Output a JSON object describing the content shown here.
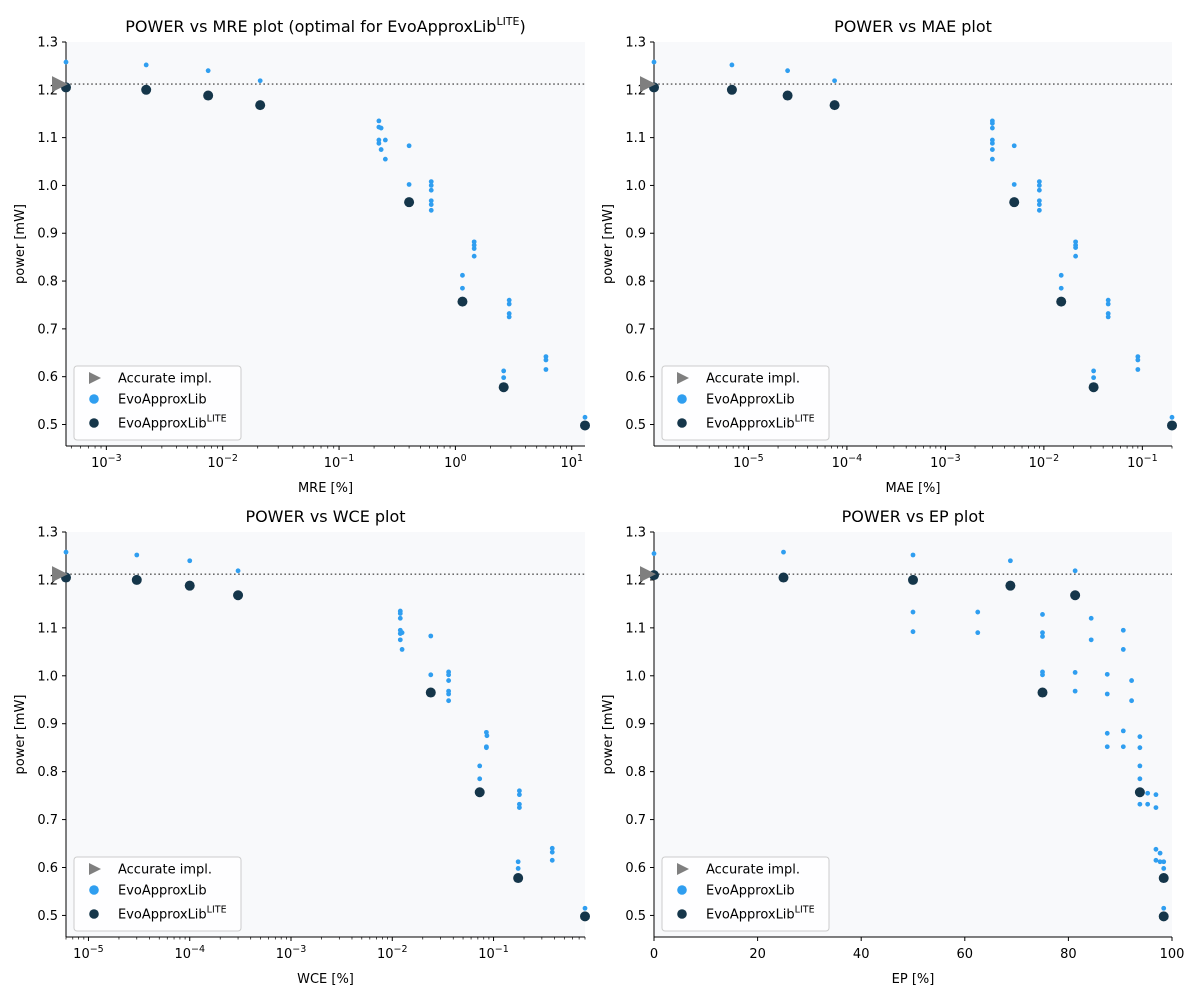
{
  "chart_data": [
    {
      "type": "scatter",
      "title": "POWER vs MRE plot (optimal for EvoApproxLib",
      "title_sup": "LITE",
      "title_suffix": ")",
      "xlabel": "MRE [%]",
      "ylabel": "power [mW]",
      "xscale": "log",
      "xlim": [
        0.00045,
        13
      ],
      "ylim": [
        0.455,
        1.3
      ],
      "xticks": [
        {
          "v": 0.001,
          "b": "10",
          "e": "−3"
        },
        {
          "v": 0.01,
          "b": "10",
          "e": "−2"
        },
        {
          "v": 0.1,
          "b": "10",
          "e": "−1"
        },
        {
          "v": 1,
          "b": "10",
          "e": "0"
        },
        {
          "v": 10,
          "b": "10",
          "e": "1"
        }
      ],
      "yticks": [
        "0.5",
        "0.6",
        "0.7",
        "0.8",
        "0.9",
        "1.0",
        "1.1",
        "1.2",
        "1.3"
      ],
      "accurate": {
        "x": 0.00045,
        "y": 1.212
      },
      "lib": [
        [
          0.00045,
          1.258
        ],
        [
          0.0022,
          1.252
        ],
        [
          0.0075,
          1.24
        ],
        [
          0.021,
          1.219
        ],
        [
          0.22,
          1.135
        ],
        [
          0.22,
          1.122
        ],
        [
          0.23,
          1.12
        ],
        [
          0.22,
          1.095
        ],
        [
          0.22,
          1.088
        ],
        [
          0.25,
          1.095
        ],
        [
          0.23,
          1.075
        ],
        [
          0.25,
          1.055
        ],
        [
          0.4,
          1.083
        ],
        [
          0.4,
          1.002
        ],
        [
          0.62,
          1.008
        ],
        [
          0.62,
          1.0
        ],
        [
          0.62,
          0.99
        ],
        [
          0.62,
          0.968
        ],
        [
          0.62,
          0.96
        ],
        [
          0.62,
          0.948
        ],
        [
          1.45,
          0.882
        ],
        [
          1.45,
          0.875
        ],
        [
          1.45,
          0.868
        ],
        [
          1.45,
          0.852
        ],
        [
          1.15,
          0.812
        ],
        [
          1.15,
          0.785
        ],
        [
          2.9,
          0.76
        ],
        [
          2.9,
          0.752
        ],
        [
          2.9,
          0.732
        ],
        [
          2.9,
          0.725
        ],
        [
          2.6,
          0.612
        ],
        [
          2.6,
          0.598
        ],
        [
          6.0,
          0.642
        ],
        [
          6.0,
          0.635
        ],
        [
          6.0,
          0.615
        ],
        [
          13,
          0.515
        ]
      ],
      "lite": [
        [
          0.00045,
          1.205
        ],
        [
          0.0022,
          1.2
        ],
        [
          0.0075,
          1.188
        ],
        [
          0.021,
          1.168
        ],
        [
          0.4,
          0.965
        ],
        [
          1.15,
          0.757
        ],
        [
          2.6,
          0.578
        ],
        [
          13,
          0.498
        ]
      ],
      "legend": [
        "Accurate impl.",
        "EvoApproxLib",
        "EvoApproxLib",
        "LITE"
      ]
    },
    {
      "type": "scatter",
      "title": "POWER vs MAE plot",
      "title_sup": "",
      "title_suffix": "",
      "xlabel": "MAE [%]",
      "ylabel": "power [mW]",
      "xscale": "log",
      "xlim": [
        1.1e-06,
        0.2
      ],
      "ylim": [
        0.455,
        1.3
      ],
      "xticks": [
        {
          "v": 1e-05,
          "b": "10",
          "e": "−5"
        },
        {
          "v": 0.0001,
          "b": "10",
          "e": "−4"
        },
        {
          "v": 0.001,
          "b": "10",
          "e": "−3"
        },
        {
          "v": 0.01,
          "b": "10",
          "e": "−2"
        },
        {
          "v": 0.1,
          "b": "10",
          "e": "−1"
        }
      ],
      "yticks": [
        "0.5",
        "0.6",
        "0.7",
        "0.8",
        "0.9",
        "1.0",
        "1.1",
        "1.2",
        "1.3"
      ],
      "accurate": {
        "x": 1.1e-06,
        "y": 1.212
      },
      "lib": [
        [
          1.1e-06,
          1.258
        ],
        [
          6.8e-06,
          1.252
        ],
        [
          2.5e-05,
          1.24
        ],
        [
          7.5e-05,
          1.219
        ],
        [
          0.003,
          1.135
        ],
        [
          0.003,
          1.13
        ],
        [
          0.003,
          1.12
        ],
        [
          0.003,
          1.095
        ],
        [
          0.003,
          1.088
        ],
        [
          0.003,
          1.075
        ],
        [
          0.003,
          1.055
        ],
        [
          0.005,
          1.083
        ],
        [
          0.005,
          1.002
        ],
        [
          0.009,
          1.008
        ],
        [
          0.009,
          1.0
        ],
        [
          0.009,
          0.99
        ],
        [
          0.009,
          0.968
        ],
        [
          0.009,
          0.96
        ],
        [
          0.009,
          0.948
        ],
        [
          0.021,
          0.882
        ],
        [
          0.021,
          0.875
        ],
        [
          0.021,
          0.87
        ],
        [
          0.021,
          0.852
        ],
        [
          0.015,
          0.812
        ],
        [
          0.015,
          0.785
        ],
        [
          0.045,
          0.76
        ],
        [
          0.045,
          0.752
        ],
        [
          0.045,
          0.732
        ],
        [
          0.045,
          0.725
        ],
        [
          0.032,
          0.612
        ],
        [
          0.032,
          0.598
        ],
        [
          0.09,
          0.642
        ],
        [
          0.09,
          0.635
        ],
        [
          0.09,
          0.615
        ],
        [
          0.2,
          0.515
        ]
      ],
      "lite": [
        [
          1.1e-06,
          1.205
        ],
        [
          6.8e-06,
          1.2
        ],
        [
          2.5e-05,
          1.188
        ],
        [
          7.5e-05,
          1.168
        ],
        [
          0.005,
          0.965
        ],
        [
          0.015,
          0.757
        ],
        [
          0.032,
          0.578
        ],
        [
          0.2,
          0.498
        ]
      ],
      "legend": [
        "Accurate impl.",
        "EvoApproxLib",
        "EvoApproxLib",
        "LITE"
      ]
    },
    {
      "type": "scatter",
      "title": "POWER vs WCE plot",
      "title_sup": "",
      "title_suffix": "",
      "xlabel": "WCE [%]",
      "ylabel": "power [mW]",
      "xscale": "log",
      "xlim": [
        6e-06,
        0.8
      ],
      "ylim": [
        0.455,
        1.3
      ],
      "xticks": [
        {
          "v": 1e-05,
          "b": "10",
          "e": "−5"
        },
        {
          "v": 0.0001,
          "b": "10",
          "e": "−4"
        },
        {
          "v": 0.001,
          "b": "10",
          "e": "−3"
        },
        {
          "v": 0.01,
          "b": "10",
          "e": "−2"
        },
        {
          "v": 0.1,
          "b": "10",
          "e": "−1"
        }
      ],
      "yticks": [
        "0.5",
        "0.6",
        "0.7",
        "0.8",
        "0.9",
        "1.0",
        "1.1",
        "1.2",
        "1.3"
      ],
      "accurate": {
        "x": 6e-06,
        "y": 1.212
      },
      "lib": [
        [
          6e-06,
          1.258
        ],
        [
          3e-05,
          1.252
        ],
        [
          0.0001,
          1.24
        ],
        [
          0.0003,
          1.219
        ],
        [
          0.012,
          1.135
        ],
        [
          0.012,
          1.13
        ],
        [
          0.012,
          1.12
        ],
        [
          0.012,
          1.095
        ],
        [
          0.0125,
          1.09
        ],
        [
          0.012,
          1.088
        ],
        [
          0.012,
          1.075
        ],
        [
          0.0125,
          1.055
        ],
        [
          0.024,
          1.083
        ],
        [
          0.024,
          1.002
        ],
        [
          0.036,
          1.008
        ],
        [
          0.036,
          1.002
        ],
        [
          0.036,
          0.99
        ],
        [
          0.036,
          0.968
        ],
        [
          0.036,
          0.962
        ],
        [
          0.036,
          0.948
        ],
        [
          0.085,
          0.882
        ],
        [
          0.086,
          0.875
        ],
        [
          0.085,
          0.852
        ],
        [
          0.085,
          0.85
        ],
        [
          0.073,
          0.812
        ],
        [
          0.073,
          0.785
        ],
        [
          0.18,
          0.76
        ],
        [
          0.18,
          0.752
        ],
        [
          0.18,
          0.732
        ],
        [
          0.18,
          0.725
        ],
        [
          0.175,
          0.612
        ],
        [
          0.175,
          0.598
        ],
        [
          0.38,
          0.64
        ],
        [
          0.38,
          0.632
        ],
        [
          0.38,
          0.615
        ],
        [
          0.8,
          0.515
        ]
      ],
      "lite": [
        [
          6e-06,
          1.205
        ],
        [
          3e-05,
          1.2
        ],
        [
          0.0001,
          1.188
        ],
        [
          0.0003,
          1.168
        ],
        [
          0.024,
          0.965
        ],
        [
          0.073,
          0.757
        ],
        [
          0.175,
          0.578
        ],
        [
          0.8,
          0.498
        ]
      ],
      "legend": [
        "Accurate impl.",
        "EvoApproxLib",
        "EvoApproxLib",
        "LITE"
      ]
    },
    {
      "type": "scatter",
      "title": "POWER vs EP plot",
      "title_sup": "",
      "title_suffix": "",
      "xlabel": "EP [%]",
      "ylabel": "power [mW]",
      "xscale": "linear",
      "xlim": [
        0,
        100
      ],
      "ylim": [
        0.455,
        1.3
      ],
      "xticks": [
        {
          "v": 0,
          "t": "0"
        },
        {
          "v": 20,
          "t": "20"
        },
        {
          "v": 40,
          "t": "40"
        },
        {
          "v": 60,
          "t": "60"
        },
        {
          "v": 80,
          "t": "80"
        },
        {
          "v": 100,
          "t": "100"
        }
      ],
      "yticks": [
        "0.5",
        "0.6",
        "0.7",
        "0.8",
        "0.9",
        "1.0",
        "1.1",
        "1.2",
        "1.3"
      ],
      "accurate": {
        "x": 0,
        "y": 1.212
      },
      "lib": [
        [
          0,
          1.255
        ],
        [
          25,
          1.258
        ],
        [
          50,
          1.252
        ],
        [
          68.8,
          1.24
        ],
        [
          81.3,
          1.219
        ],
        [
          50,
          1.133
        ],
        [
          62.5,
          1.133
        ],
        [
          50,
          1.092
        ],
        [
          62.5,
          1.09
        ],
        [
          75,
          1.128
        ],
        [
          75,
          1.09
        ],
        [
          75,
          1.082
        ],
        [
          84.4,
          1.12
        ],
        [
          84.4,
          1.075
        ],
        [
          90.6,
          1.095
        ],
        [
          90.6,
          1.055
        ],
        [
          75,
          1.008
        ],
        [
          75,
          1.002
        ],
        [
          81.3,
          1.007
        ],
        [
          81.3,
          0.968
        ],
        [
          87.5,
          1.003
        ],
        [
          87.5,
          0.962
        ],
        [
          92.2,
          0.99
        ],
        [
          92.2,
          0.948
        ],
        [
          87.5,
          0.88
        ],
        [
          90.6,
          0.885
        ],
        [
          93.8,
          0.873
        ],
        [
          87.5,
          0.852
        ],
        [
          90.6,
          0.852
        ],
        [
          93.8,
          0.85
        ],
        [
          93.8,
          0.812
        ],
        [
          93.8,
          0.785
        ],
        [
          95.3,
          0.755
        ],
        [
          96.9,
          0.752
        ],
        [
          93.8,
          0.732
        ],
        [
          95.3,
          0.732
        ],
        [
          96.9,
          0.725
        ],
        [
          96.9,
          0.638
        ],
        [
          97.7,
          0.63
        ],
        [
          96.9,
          0.615
        ],
        [
          97.7,
          0.612
        ],
        [
          98.4,
          0.612
        ],
        [
          98.4,
          0.598
        ],
        [
          98.4,
          0.515
        ]
      ],
      "lite": [
        [
          0,
          1.21
        ],
        [
          25,
          1.205
        ],
        [
          50,
          1.2
        ],
        [
          68.8,
          1.188
        ],
        [
          81.3,
          1.168
        ],
        [
          75,
          0.965
        ],
        [
          93.8,
          0.757
        ],
        [
          98.4,
          0.578
        ],
        [
          98.4,
          0.498
        ]
      ],
      "legend": [
        "Accurate impl.",
        "EvoApproxLib",
        "EvoApproxLib",
        "LITE"
      ]
    }
  ],
  "colors": {
    "accurate": "#7f7f7f",
    "lib": "#2f9ef0",
    "lite": "#15364a",
    "axes_bg": "#f8f9fb",
    "ref_line": "#555555"
  }
}
